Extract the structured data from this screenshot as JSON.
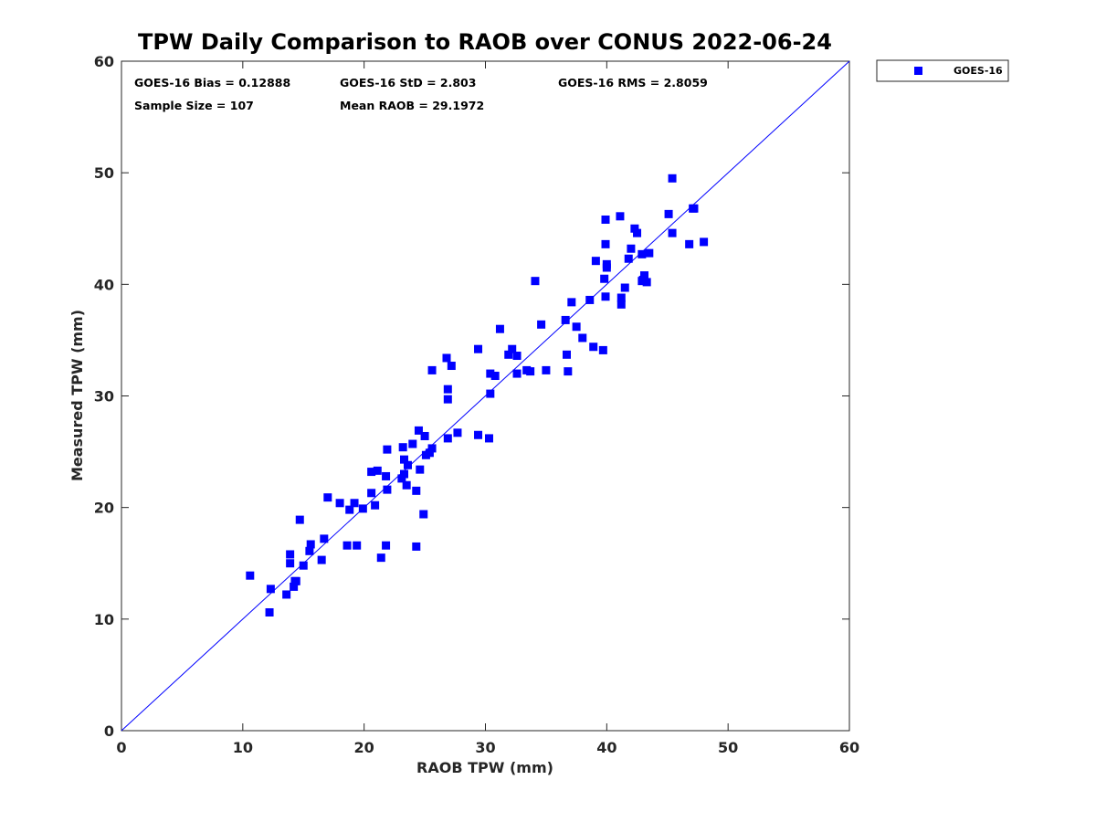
{
  "chart_data": {
    "type": "scatter",
    "title": "TPW Daily Comparison to RAOB over CONUS 2022-06-24",
    "xlabel": "RAOB TPW (mm)",
    "ylabel": "Measured TPW (mm)",
    "xlim": [
      0,
      60
    ],
    "ylim": [
      0,
      60
    ],
    "xticks": [
      0,
      10,
      20,
      30,
      40,
      50,
      60
    ],
    "yticks": [
      0,
      10,
      20,
      30,
      40,
      50,
      60
    ],
    "grid": false,
    "legend_position": "outside-top-right",
    "reference_line": {
      "name": "1:1 line",
      "x": [
        0,
        60
      ],
      "y": [
        0,
        60
      ],
      "color": "#0000ff"
    },
    "stats": [
      {
        "id": "bias",
        "text": "GOES-16 Bias = 0.12888"
      },
      {
        "id": "std",
        "text": "GOES-16 StD = 2.803"
      },
      {
        "id": "rms",
        "text": "GOES-16 RMS = 2.8059"
      },
      {
        "id": "sample",
        "text": "Sample Size = 107"
      },
      {
        "id": "mean",
        "text": "Mean RAOB = 29.1972"
      }
    ],
    "series": [
      {
        "name": "GOES-16",
        "color": "#0000ff",
        "marker": "square",
        "points": [
          [
            10.6,
            13.9
          ],
          [
            12.2,
            10.6
          ],
          [
            12.3,
            12.7
          ],
          [
            13.6,
            12.2
          ],
          [
            13.9,
            15.0
          ],
          [
            13.9,
            15.8
          ],
          [
            14.2,
            12.9
          ],
          [
            14.3,
            13.4
          ],
          [
            14.4,
            13.4
          ],
          [
            14.7,
            18.9
          ],
          [
            15.0,
            14.8
          ],
          [
            15.5,
            16.1
          ],
          [
            15.6,
            16.7
          ],
          [
            16.5,
            15.3
          ],
          [
            16.7,
            17.2
          ],
          [
            17.0,
            20.9
          ],
          [
            18.0,
            20.4
          ],
          [
            18.6,
            16.6
          ],
          [
            18.8,
            19.8
          ],
          [
            19.2,
            20.4
          ],
          [
            19.4,
            16.6
          ],
          [
            19.9,
            19.9
          ],
          [
            20.6,
            21.3
          ],
          [
            20.6,
            23.2
          ],
          [
            20.9,
            20.2
          ],
          [
            21.1,
            23.3
          ],
          [
            21.4,
            15.5
          ],
          [
            21.8,
            22.8
          ],
          [
            21.8,
            16.6
          ],
          [
            21.9,
            21.6
          ],
          [
            21.9,
            25.2
          ],
          [
            23.1,
            22.6
          ],
          [
            23.2,
            25.4
          ],
          [
            23.3,
            24.3
          ],
          [
            23.3,
            23.0
          ],
          [
            23.5,
            22.0
          ],
          [
            23.6,
            23.8
          ],
          [
            24.0,
            25.7
          ],
          [
            24.3,
            21.5
          ],
          [
            24.3,
            16.5
          ],
          [
            24.5,
            26.9
          ],
          [
            24.6,
            23.4
          ],
          [
            24.9,
            19.4
          ],
          [
            25.0,
            26.4
          ],
          [
            25.1,
            24.7
          ],
          [
            25.4,
            24.9
          ],
          [
            25.6,
            25.3
          ],
          [
            25.6,
            32.3
          ],
          [
            26.8,
            33.4
          ],
          [
            26.9,
            29.7
          ],
          [
            26.9,
            30.6
          ],
          [
            26.9,
            26.2
          ],
          [
            27.2,
            32.7
          ],
          [
            27.7,
            26.7
          ],
          [
            29.4,
            26.5
          ],
          [
            29.4,
            34.2
          ],
          [
            30.3,
            26.2
          ],
          [
            30.4,
            32.0
          ],
          [
            30.4,
            30.2
          ],
          [
            30.8,
            31.8
          ],
          [
            31.2,
            36.0
          ],
          [
            31.9,
            33.7
          ],
          [
            32.2,
            34.2
          ],
          [
            32.6,
            33.6
          ],
          [
            32.6,
            32.0
          ],
          [
            33.4,
            32.3
          ],
          [
            33.7,
            32.2
          ],
          [
            34.1,
            40.3
          ],
          [
            34.6,
            36.4
          ],
          [
            35.0,
            32.3
          ],
          [
            36.6,
            36.8
          ],
          [
            36.7,
            33.7
          ],
          [
            36.8,
            32.2
          ],
          [
            37.1,
            38.4
          ],
          [
            37.5,
            36.2
          ],
          [
            38.0,
            35.2
          ],
          [
            38.6,
            38.6
          ],
          [
            38.9,
            34.4
          ],
          [
            39.1,
            42.1
          ],
          [
            39.7,
            34.1
          ],
          [
            39.8,
            40.5
          ],
          [
            39.9,
            38.9
          ],
          [
            39.9,
            43.6
          ],
          [
            39.9,
            45.8
          ],
          [
            40.0,
            41.5
          ],
          [
            40.0,
            41.8
          ],
          [
            41.1,
            46.1
          ],
          [
            41.2,
            38.2
          ],
          [
            41.2,
            38.8
          ],
          [
            41.5,
            39.7
          ],
          [
            41.8,
            42.3
          ],
          [
            42.0,
            43.2
          ],
          [
            42.3,
            45.0
          ],
          [
            42.5,
            44.6
          ],
          [
            42.9,
            40.3
          ],
          [
            42.9,
            42.7
          ],
          [
            43.1,
            40.8
          ],
          [
            43.3,
            40.2
          ],
          [
            43.5,
            42.8
          ],
          [
            45.1,
            46.3
          ],
          [
            45.4,
            49.5
          ],
          [
            45.4,
            44.6
          ],
          [
            46.8,
            43.6
          ],
          [
            47.1,
            46.8
          ],
          [
            48.0,
            43.8
          ],
          [
            47.2,
            46.8
          ],
          [
            43.0,
            40.4
          ]
        ]
      }
    ]
  }
}
